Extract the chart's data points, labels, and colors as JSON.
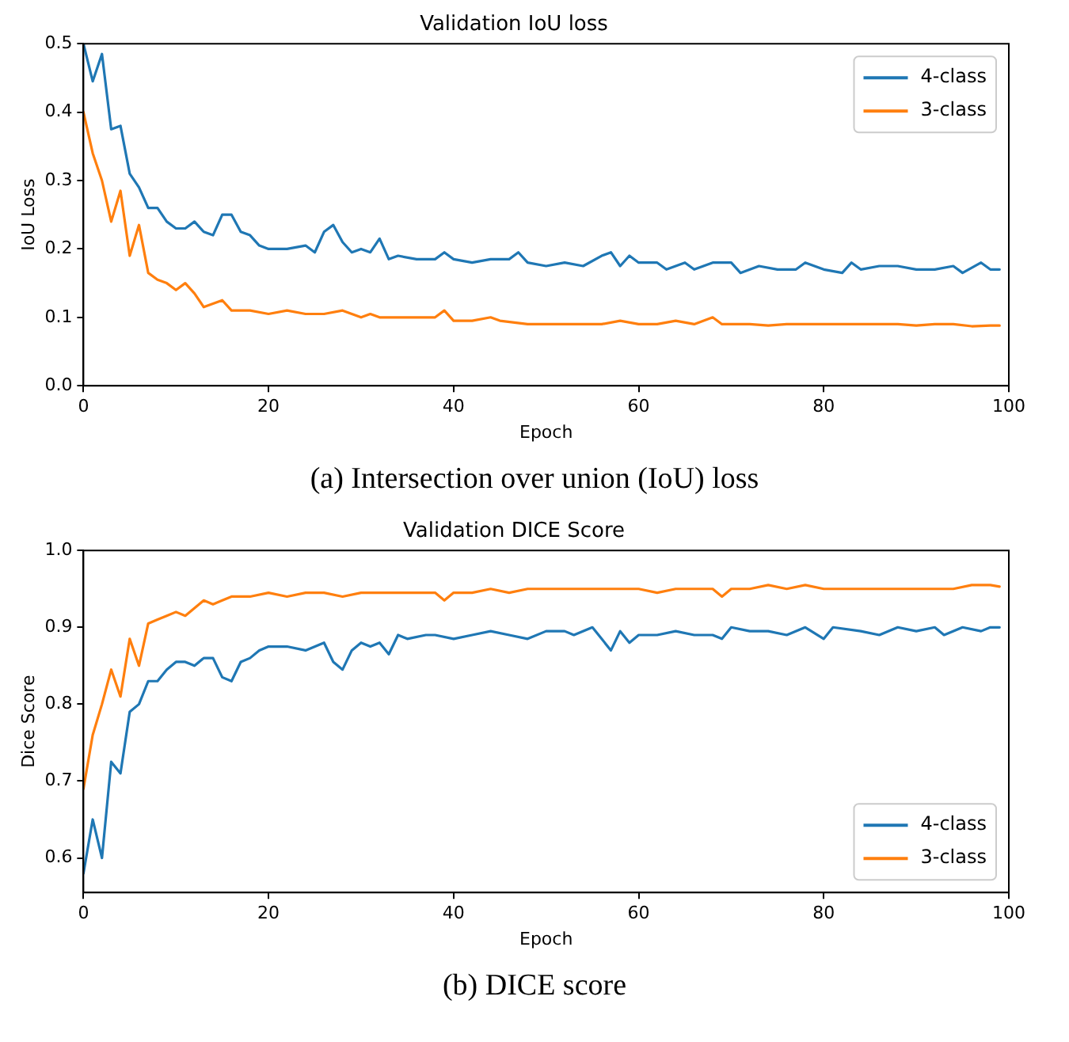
{
  "chart_data": [
    {
      "type": "line",
      "title": "Validation IoU loss",
      "xlabel": "Epoch",
      "ylabel": "IoU Loss",
      "annotations": [
        "(a) Intersection over union (IoU) loss"
      ],
      "xlim": [
        0,
        100
      ],
      "xticks": [
        0,
        20,
        40,
        60,
        80,
        100
      ],
      "ylim": [
        0,
        0.5
      ],
      "yticks": [
        {
          "value": 0,
          "label": "0.0"
        },
        0.1,
        0.2,
        0.3,
        0.4,
        0.5
      ],
      "grid": false,
      "legend": "top right",
      "marker": "none",
      "line_style": "solid",
      "series": [
        {
          "name": "4-class",
          "color": "#1f77b4",
          "x": [
            0,
            1,
            2,
            3,
            4,
            5,
            6,
            7,
            8,
            9,
            10,
            11,
            12,
            13,
            14,
            15,
            16,
            17,
            18,
            19,
            20,
            22,
            24,
            25,
            26,
            27,
            28,
            29,
            30,
            31,
            32,
            33,
            34,
            36,
            38,
            39,
            40,
            42,
            44,
            46,
            47,
            48,
            50,
            52,
            54,
            56,
            57,
            58,
            59,
            60,
            62,
            63,
            65,
            66,
            68,
            70,
            71,
            73,
            75,
            77,
            78,
            80,
            82,
            83,
            84,
            86,
            88,
            90,
            92,
            94,
            95,
            97,
            98,
            99
          ],
          "values": [
            0.5,
            0.445,
            0.485,
            0.375,
            0.38,
            0.31,
            0.29,
            0.26,
            0.26,
            0.24,
            0.23,
            0.23,
            0.24,
            0.225,
            0.22,
            0.25,
            0.25,
            0.225,
            0.22,
            0.205,
            0.2,
            0.2,
            0.205,
            0.195,
            0.225,
            0.235,
            0.21,
            0.195,
            0.2,
            0.195,
            0.215,
            0.185,
            0.19,
            0.185,
            0.185,
            0.195,
            0.185,
            0.18,
            0.185,
            0.185,
            0.195,
            0.18,
            0.175,
            0.18,
            0.175,
            0.19,
            0.195,
            0.175,
            0.19,
            0.18,
            0.18,
            0.17,
            0.18,
            0.17,
            0.18,
            0.18,
            0.165,
            0.175,
            0.17,
            0.17,
            0.18,
            0.17,
            0.165,
            0.18,
            0.17,
            0.175,
            0.175,
            0.17,
            0.17,
            0.175,
            0.165,
            0.18,
            0.17,
            0.17
          ]
        },
        {
          "name": "3-class",
          "color": "#ff7f0e",
          "x": [
            0,
            1,
            2,
            3,
            4,
            5,
            6,
            7,
            8,
            9,
            10,
            11,
            12,
            13,
            14,
            15,
            16,
            18,
            20,
            22,
            24,
            26,
            28,
            29,
            30,
            31,
            32,
            34,
            36,
            38,
            39,
            40,
            42,
            44,
            45,
            48,
            50,
            52,
            54,
            56,
            58,
            60,
            62,
            64,
            66,
            68,
            69,
            70,
            72,
            74,
            76,
            78,
            80,
            82,
            84,
            86,
            88,
            90,
            92,
            94,
            96,
            98,
            99
          ],
          "values": [
            0.4,
            0.34,
            0.3,
            0.24,
            0.285,
            0.19,
            0.235,
            0.165,
            0.155,
            0.15,
            0.14,
            0.15,
            0.135,
            0.115,
            0.12,
            0.125,
            0.11,
            0.11,
            0.105,
            0.11,
            0.105,
            0.105,
            0.11,
            0.105,
            0.1,
            0.105,
            0.1,
            0.1,
            0.1,
            0.1,
            0.11,
            0.095,
            0.095,
            0.1,
            0.095,
            0.09,
            0.09,
            0.09,
            0.09,
            0.09,
            0.095,
            0.09,
            0.09,
            0.095,
            0.09,
            0.1,
            0.09,
            0.09,
            0.09,
            0.088,
            0.09,
            0.09,
            0.09,
            0.09,
            0.09,
            0.09,
            0.09,
            0.088,
            0.09,
            0.09,
            0.087,
            0.088,
            0.088
          ]
        }
      ]
    },
    {
      "type": "line",
      "title": "Validation DICE Score",
      "xlabel": "Epoch",
      "ylabel": "Dice Score",
      "annotations": [
        "(b) DICE score"
      ],
      "xlim": [
        0,
        100
      ],
      "xticks": [
        0,
        20,
        40,
        60,
        80,
        100
      ],
      "ylim": [
        0.555,
        1
      ],
      "yticks": [
        0.6,
        0.7,
        0.8,
        0.9,
        {
          "value": 1,
          "label": "1.0"
        }
      ],
      "grid": false,
      "legend": "bottom right",
      "marker": "none",
      "line_style": "solid",
      "series": [
        {
          "name": "4-class",
          "color": "#1f77b4",
          "x": [
            0,
            1,
            2,
            3,
            4,
            5,
            6,
            7,
            8,
            9,
            10,
            11,
            12,
            13,
            14,
            15,
            16,
            17,
            18,
            19,
            20,
            22,
            24,
            26,
            27,
            28,
            29,
            30,
            31,
            32,
            33,
            34,
            35,
            37,
            38,
            40,
            42,
            44,
            46,
            48,
            50,
            52,
            53,
            55,
            56,
            57,
            58,
            59,
            60,
            62,
            64,
            66,
            68,
            69,
            70,
            72,
            74,
            76,
            78,
            80,
            81,
            84,
            86,
            88,
            90,
            92,
            93,
            95,
            97,
            98,
            99
          ],
          "values": [
            0.58,
            0.65,
            0.6,
            0.725,
            0.71,
            0.79,
            0.8,
            0.83,
            0.83,
            0.845,
            0.855,
            0.855,
            0.85,
            0.86,
            0.86,
            0.835,
            0.83,
            0.855,
            0.86,
            0.87,
            0.875,
            0.875,
            0.87,
            0.88,
            0.855,
            0.845,
            0.87,
            0.88,
            0.875,
            0.88,
            0.865,
            0.89,
            0.885,
            0.89,
            0.89,
            0.885,
            0.89,
            0.895,
            0.89,
            0.885,
            0.895,
            0.895,
            0.89,
            0.9,
            0.885,
            0.87,
            0.895,
            0.88,
            0.89,
            0.89,
            0.895,
            0.89,
            0.89,
            0.885,
            0.9,
            0.895,
            0.895,
            0.89,
            0.9,
            0.885,
            0.9,
            0.895,
            0.89,
            0.9,
            0.895,
            0.9,
            0.89,
            0.9,
            0.895,
            0.9,
            0.9
          ]
        },
        {
          "name": "3-class",
          "color": "#ff7f0e",
          "x": [
            0,
            1,
            2,
            3,
            4,
            5,
            6,
            7,
            8,
            9,
            10,
            11,
            12,
            13,
            14,
            15,
            16,
            18,
            20,
            22,
            24,
            26,
            28,
            30,
            32,
            34,
            36,
            38,
            39,
            40,
            42,
            44,
            46,
            48,
            50,
            52,
            54,
            56,
            58,
            60,
            62,
            64,
            66,
            68,
            69,
            70,
            72,
            74,
            76,
            78,
            80,
            82,
            84,
            86,
            88,
            90,
            92,
            94,
            96,
            98,
            99
          ],
          "values": [
            0.69,
            0.76,
            0.8,
            0.845,
            0.81,
            0.885,
            0.85,
            0.905,
            0.91,
            0.915,
            0.92,
            0.915,
            0.925,
            0.935,
            0.93,
            0.935,
            0.94,
            0.94,
            0.945,
            0.94,
            0.945,
            0.945,
            0.94,
            0.945,
            0.945,
            0.945,
            0.945,
            0.945,
            0.935,
            0.945,
            0.945,
            0.95,
            0.945,
            0.95,
            0.95,
            0.95,
            0.95,
            0.95,
            0.95,
            0.95,
            0.945,
            0.95,
            0.95,
            0.95,
            0.94,
            0.95,
            0.95,
            0.955,
            0.95,
            0.955,
            0.95,
            0.95,
            0.95,
            0.95,
            0.95,
            0.95,
            0.95,
            0.95,
            0.955,
            0.955,
            0.953
          ]
        }
      ]
    }
  ]
}
